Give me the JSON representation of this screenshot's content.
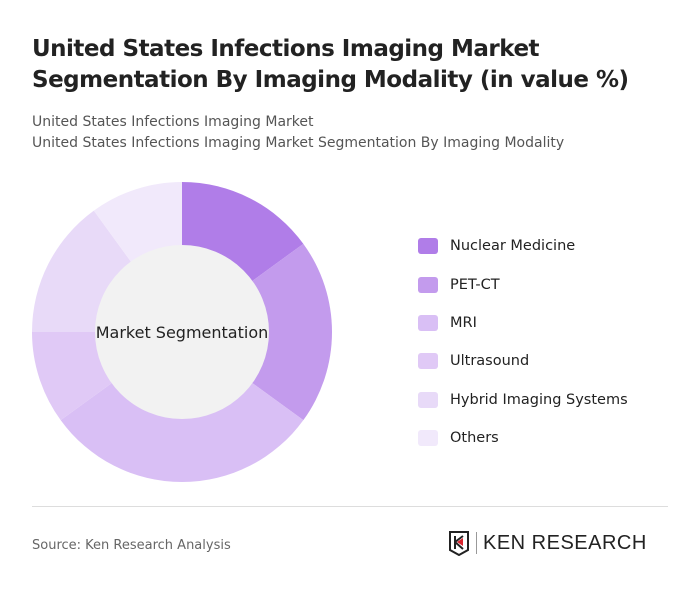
{
  "title": "United States Infections Imaging Market Segmentation By Imaging Modality (in value %)",
  "subtitle1": "United States Infections Imaging Market",
  "subtitle2": "United States Infections Imaging Market Segmentation By Imaging Modality",
  "source": "Source: Ken Research Analysis",
  "logo_text": "KEN RESEARCH",
  "chart_data": {
    "type": "pie",
    "variant": "donut",
    "center_label": "Market Segmentation",
    "legend_position": "right",
    "categories": [
      "Nuclear Medicine",
      "PET-CT",
      "MRI",
      "Ultrasound",
      "Hybrid Imaging Systems",
      "Others"
    ],
    "values": [
      15,
      20,
      30,
      10,
      15,
      10
    ],
    "colors": [
      "#b07de8",
      "#c39bed",
      "#d9bff5",
      "#e0c9f6",
      "#e8daf8",
      "#f1e9fb"
    ]
  }
}
